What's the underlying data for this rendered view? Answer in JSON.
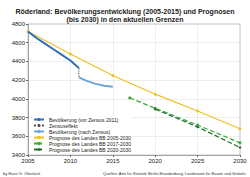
{
  "chart_data": {
    "type": "line",
    "title": "Röderland: Bevölkerungsentwicklung (2005-2015) und Prognosen\n(bis 2030) in den aktuellen Grenzen",
    "xlim": [
      2005,
      2030
    ],
    "xticks": [
      2005,
      2010,
      2015,
      2020,
      2025,
      2030
    ],
    "ylim": [
      3400,
      4800
    ],
    "yticks": [
      3400,
      3600,
      3800,
      4000,
      4200,
      4400,
      4600,
      4800
    ],
    "grid": true,
    "legend": "lower left",
    "series": [
      {
        "name": "Bevölkerung (vor Zensus 2011)",
        "color": "#2f6fb5",
        "marker": "none",
        "line_style": "solid",
        "x": [
          2005,
          2006,
          2007,
          2008,
          2009,
          2010,
          2011
        ],
        "values": [
          4720,
          4650,
          4590,
          4530,
          4470,
          4410,
          4330
        ]
      },
      {
        "name": "Zensuseffekt",
        "color": "#555555",
        "marker": "none",
        "line_style": "dotted",
        "x": [
          2011,
          2011
        ],
        "values": [
          4330,
          4230
        ]
      },
      {
        "name": "Bevölkerung (nach Zensus)",
        "color": "#6aa7dc",
        "marker": "none",
        "line_style": "solid",
        "x": [
          2011,
          2012,
          2013,
          2014,
          2015
        ],
        "values": [
          4230,
          4190,
          4160,
          4140,
          4130
        ]
      },
      {
        "name": "Prognose des Landes BB 2005-2030",
        "color": "#f0c020",
        "marker": "circle",
        "line_style": "solid",
        "x": [
          2005,
          2010,
          2015,
          2020,
          2025,
          2030
        ],
        "values": [
          4720,
          4480,
          4250,
          4050,
          3870,
          3680
        ]
      },
      {
        "name": "Prognose des Landes BB 2017-2030",
        "color": "#3aa83a",
        "marker": "circle",
        "line_style": "dashed",
        "x": [
          2017,
          2020,
          2025,
          2030
        ],
        "values": [
          4010,
          3900,
          3720,
          3530
        ]
      },
      {
        "name": "Prognose des Landes BB 2020-2030",
        "color": "#1d6b2a",
        "marker": "diamond",
        "line_style": "dashed",
        "x": [
          2020,
          2025,
          2030
        ],
        "values": [
          3890,
          3700,
          3480
        ]
      }
    ],
    "annotations": [
      "by Hans G. Oberlack",
      "Quellen: Amt für Statistik Berlin-Brandenburg, Landesamt für Bauen und Verkehr"
    ]
  }
}
